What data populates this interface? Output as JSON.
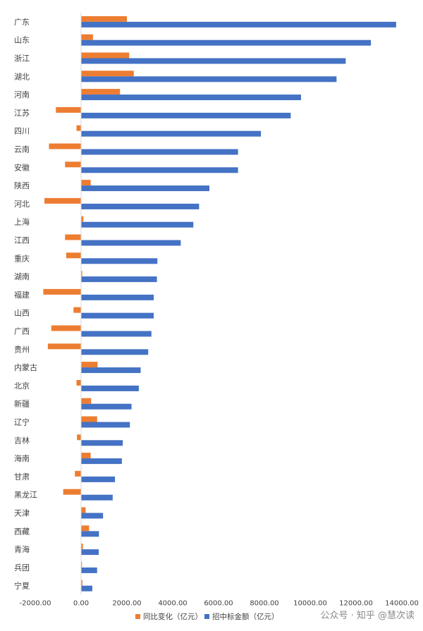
{
  "chart_data": {
    "type": "bar",
    "orientation": "horizontal",
    "categories": [
      "广东",
      "山东",
      "浙江",
      "湖北",
      "河南",
      "江苏",
      "四川",
      "云南",
      "安徽",
      "陕西",
      "河北",
      "上海",
      "江西",
      "重庆",
      "湖南",
      "福建",
      "山西",
      "广西",
      "贵州",
      "内蒙古",
      "北京",
      "新疆",
      "辽宁",
      "吉林",
      "海南",
      "甘肃",
      "黑龙江",
      "天津",
      "西藏",
      "青海",
      "兵团",
      "宁夏"
    ],
    "series": [
      {
        "name": "同比变化（亿元）",
        "color": "#ED7D31",
        "values": [
          2000,
          520,
          2100,
          2300,
          1700,
          -1100,
          -200,
          -1400,
          -700,
          420,
          -1600,
          100,
          -700,
          -650,
          50,
          -1650,
          -330,
          -1300,
          -1450,
          720,
          -200,
          440,
          700,
          -180,
          420,
          -270,
          -780,
          200,
          350,
          80,
          40,
          60
        ]
      },
      {
        "name": "招中标金额（亿元）",
        "color": "#4472C4",
        "values": [
          13750,
          12650,
          11550,
          11150,
          9600,
          9150,
          7850,
          6850,
          6850,
          5600,
          5150,
          4900,
          4350,
          3330,
          3310,
          3170,
          3170,
          3070,
          2930,
          2600,
          2520,
          2200,
          2130,
          1820,
          1780,
          1480,
          1380,
          960,
          780,
          770,
          700,
          490
        ]
      }
    ],
    "xlim": [
      -2000,
      14000
    ],
    "xticks": [
      "-2000.00",
      "0.00",
      "2000.00",
      "4000.00",
      "6000.00",
      "8000.00",
      "10000.00",
      "12000.00",
      "14000.00"
    ],
    "legend": "bottom",
    "grid": false
  },
  "watermark": "公众号 · 知乎 @慧次读"
}
